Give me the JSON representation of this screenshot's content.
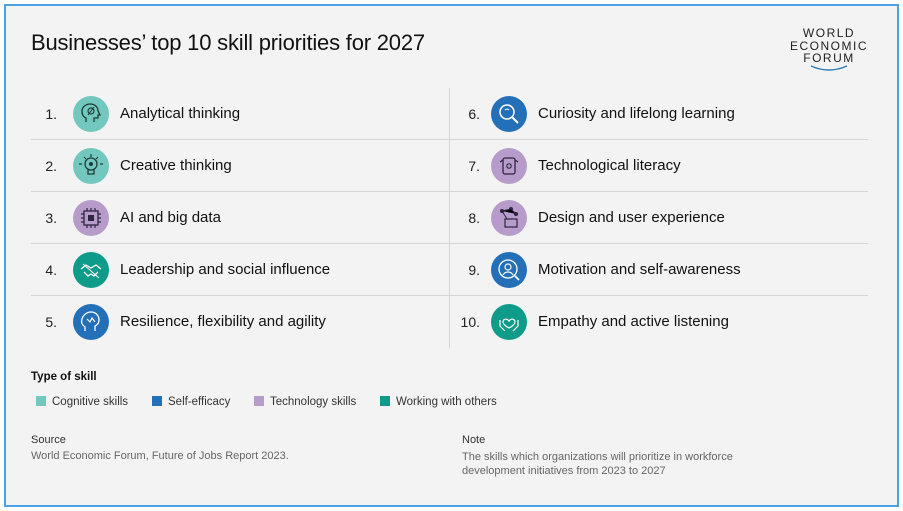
{
  "title": "Businesses’ top 10 skill priorities for 2027",
  "logo": {
    "line1": "WORLD",
    "line2": "ECONOMIC",
    "line3": "FORUM"
  },
  "colors": {
    "cognitive": "#72c8be",
    "self_efficacy": "#2470b8",
    "technology": "#b79ccb",
    "working_with_others": "#0e9b8a"
  },
  "skills_left": [
    {
      "num": "1.",
      "label": "Analytical thinking",
      "icon": "brain-gear-icon",
      "type": "cognitive"
    },
    {
      "num": "2.",
      "label": "Creative thinking",
      "icon": "lightbulb-icon",
      "type": "cognitive"
    },
    {
      "num": "3.",
      "label": "AI and big data",
      "icon": "chip-icon",
      "type": "technology"
    },
    {
      "num": "4.",
      "label": "Leadership and social influence",
      "icon": "handshake-icon",
      "type": "working_with_others"
    },
    {
      "num": "5.",
      "label": "Resilience, flexibility and agility",
      "icon": "head-resilience-icon",
      "type": "self_efficacy"
    }
  ],
  "skills_right": [
    {
      "num": "6.",
      "label": "Curiosity and lifelong learning",
      "icon": "magnifier-icon",
      "type": "self_efficacy"
    },
    {
      "num": "7.",
      "label": "Technological literacy",
      "icon": "robot-icon",
      "type": "technology"
    },
    {
      "num": "8.",
      "label": "Design and user experience",
      "icon": "design-network-icon",
      "type": "technology"
    },
    {
      "num": "9.",
      "label": "Motivation and self-awareness",
      "icon": "person-target-icon",
      "type": "self_efficacy"
    },
    {
      "num": "10.",
      "label": "Empathy and active listening",
      "icon": "hands-heart-icon",
      "type": "working_with_others"
    }
  ],
  "legend": {
    "title": "Type of skill",
    "items": [
      "Cognitive skills",
      "Self-efficacy",
      "Technology skills",
      "Working with others"
    ]
  },
  "source": {
    "heading": "Source",
    "text": "World Economic Forum, Future of Jobs Report 2023."
  },
  "note": {
    "heading": "Note",
    "text": "The skills which organizations will prioritize in workforce development initiatives from 2023 to 2027"
  }
}
